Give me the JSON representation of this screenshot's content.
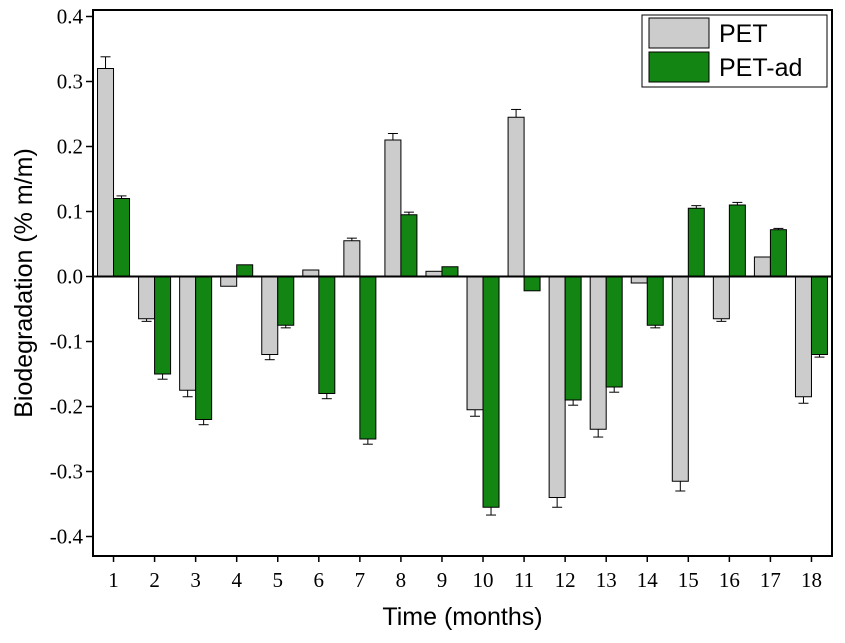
{
  "chart_data": {
    "type": "bar",
    "categories": [
      "1",
      "2",
      "3",
      "4",
      "5",
      "6",
      "7",
      "8",
      "9",
      "10",
      "11",
      "12",
      "13",
      "14",
      "15",
      "16",
      "17",
      "18"
    ],
    "series": [
      {
        "name": "PET",
        "color": "#cccccc",
        "values": [
          0.32,
          -0.065,
          -0.175,
          -0.015,
          -0.12,
          0.01,
          0.055,
          0.21,
          0.008,
          -0.205,
          0.245,
          -0.34,
          -0.235,
          -0.01,
          -0.315,
          -0.065,
          0.03,
          -0.185
        ],
        "errors": [
          0.018,
          0.004,
          0.01,
          0.0,
          0.008,
          0.0,
          0.004,
          0.01,
          0.0,
          0.01,
          0.012,
          0.015,
          0.012,
          0.0,
          0.015,
          0.004,
          0.0,
          0.01
        ]
      },
      {
        "name": "PET-ad",
        "color": "#138513",
        "values": [
          0.12,
          -0.15,
          -0.22,
          0.018,
          -0.075,
          -0.18,
          -0.25,
          0.095,
          0.015,
          -0.355,
          -0.022,
          -0.19,
          -0.17,
          -0.075,
          0.105,
          0.11,
          0.072,
          -0.12
        ],
        "errors": [
          0.004,
          0.008,
          0.008,
          0.0,
          0.004,
          0.008,
          0.008,
          0.004,
          0.0,
          0.012,
          0.0,
          0.008,
          0.008,
          0.004,
          0.004,
          0.004,
          0.002,
          0.004
        ]
      }
    ],
    "xlabel": "Time (months)",
    "ylabel": "Biodegradation (% m/m)",
    "ylim": [
      -0.43,
      0.41
    ],
    "yticks": [
      0.4,
      0.3,
      0.2,
      0.1,
      0.0,
      -0.1,
      -0.2,
      -0.3,
      -0.4
    ],
    "ytick_labels": [
      "0.4",
      "0.3",
      "0.2",
      "0.1",
      "0.0",
      "-0.1",
      "-0.2",
      "-0.3",
      "-0.4"
    ],
    "legend_position": "top-right",
    "grid": false
  }
}
